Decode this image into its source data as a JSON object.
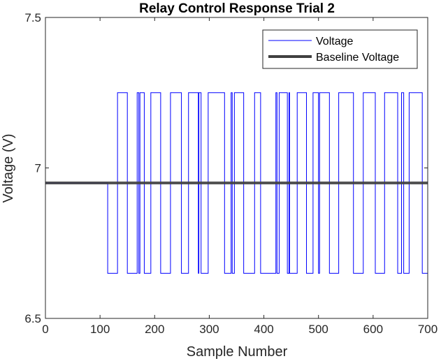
{
  "chart_data": {
    "type": "line",
    "title": "Relay Control Response Trial 2",
    "xlabel": "Sample Number",
    "ylabel": "Voltage (V)",
    "xlim": [
      0,
      700
    ],
    "ylim": [
      6.5,
      7.5
    ],
    "xticks": [
      0,
      100,
      200,
      300,
      400,
      500,
      600,
      700
    ],
    "yticks": [
      6.5,
      7,
      7.5
    ],
    "xtick_labels": [
      "0",
      "100",
      "200",
      "300",
      "400",
      "500",
      "600",
      "700"
    ],
    "ytick_labels": [
      "6.5",
      "7",
      "7.5"
    ],
    "grid": false,
    "legend_position": "top-right",
    "series": [
      {
        "name": "Voltage",
        "color": "#0000ff",
        "style": "step",
        "x": [
          0,
          114,
          114,
          132,
          132,
          150,
          150,
          168,
          168,
          171,
          171,
          173,
          173,
          181,
          181,
          193,
          193,
          211,
          211,
          229,
          229,
          249,
          249,
          262,
          262,
          280,
          280,
          281,
          281,
          285,
          285,
          298,
          298,
          328,
          328,
          340,
          340,
          342,
          342,
          346,
          346,
          363,
          363,
          383,
          383,
          394,
          394,
          422,
          422,
          424,
          424,
          428,
          428,
          443,
          443,
          446,
          446,
          447,
          447,
          461,
          461,
          478,
          478,
          490,
          490,
          500,
          500,
          502,
          502,
          520,
          520,
          537,
          537,
          564,
          564,
          582,
          582,
          604,
          604,
          621,
          621,
          645,
          645,
          652,
          652,
          656,
          656,
          666,
          666,
          690,
          690,
          700,
          700
        ],
        "y": [
          6.95,
          6.95,
          6.65,
          6.65,
          7.25,
          7.25,
          6.65,
          6.65,
          7.25,
          7.25,
          6.65,
          6.65,
          7.25,
          7.25,
          6.65,
          6.65,
          7.25,
          7.25,
          6.65,
          6.65,
          7.25,
          7.25,
          6.65,
          6.65,
          7.25,
          7.25,
          6.65,
          6.65,
          7.25,
          7.25,
          6.65,
          6.65,
          7.25,
          7.25,
          6.65,
          6.65,
          7.25,
          7.25,
          6.65,
          6.65,
          7.25,
          7.25,
          6.65,
          6.65,
          7.25,
          7.25,
          6.65,
          6.65,
          7.25,
          7.25,
          6.65,
          6.65,
          7.25,
          7.25,
          6.65,
          6.65,
          7.25,
          7.25,
          6.65,
          6.65,
          7.25,
          7.25,
          6.65,
          6.65,
          7.25,
          7.25,
          6.65,
          6.65,
          7.25,
          7.25,
          6.65,
          6.65,
          7.25,
          7.25,
          6.65,
          6.65,
          7.25,
          7.25,
          6.65,
          6.65,
          7.25,
          7.25,
          6.65,
          6.65,
          7.25,
          7.25,
          6.65,
          6.65,
          7.25,
          7.25,
          6.65,
          6.65,
          7.25
        ]
      },
      {
        "name": "Baseline Voltage",
        "color": "#404040",
        "style": "line",
        "x": [
          0,
          700
        ],
        "y": [
          6.95,
          6.95
        ]
      }
    ]
  }
}
